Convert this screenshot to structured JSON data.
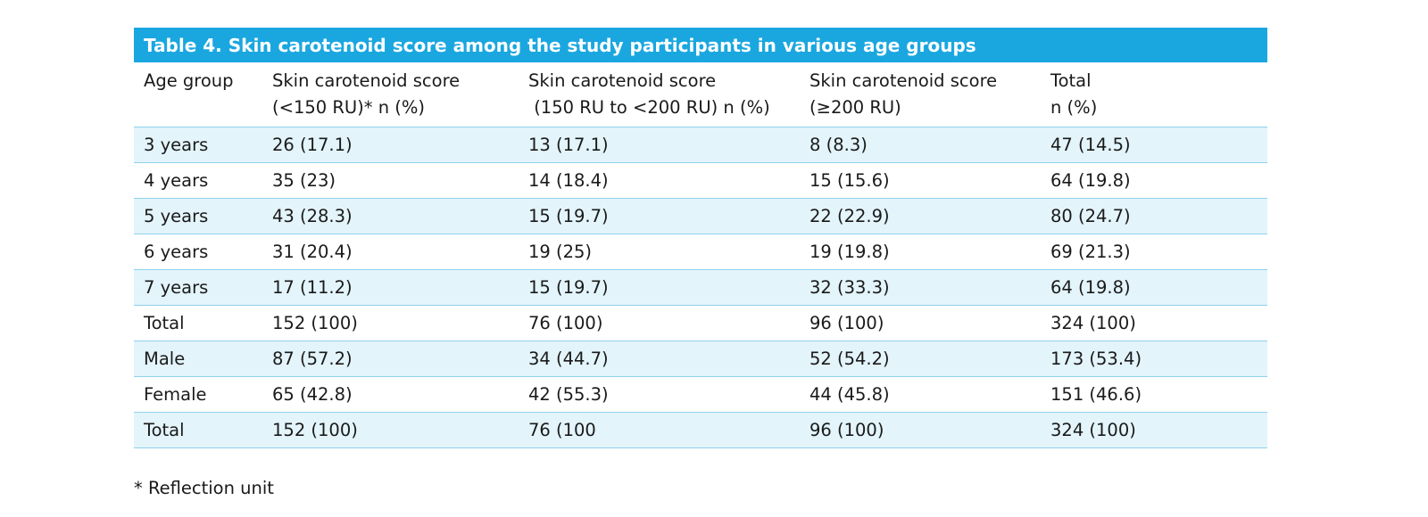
{
  "caption": "Table 4. Skin carotenoid score among the study participants in various age groups",
  "headers": [
    {
      "line1": "Age group",
      "line2": ""
    },
    {
      "line1": "Skin carotenoid score",
      "line2": "(<150 RU)* n (%)"
    },
    {
      "line1": "Skin carotenoid score",
      "line2": " (150 RU to <200 RU) n (%)"
    },
    {
      "line1": "Skin carotenoid score",
      "line2": "(≥200 RU)"
    },
    {
      "line1": "Total",
      "line2": "n (%)"
    }
  ],
  "rows": [
    [
      "3 years",
      "26 (17.1)",
      "13 (17.1)",
      "8 (8.3)",
      "47 (14.5)"
    ],
    [
      "4 years",
      "35 (23)",
      "14 (18.4)",
      "15 (15.6)",
      "64 (19.8)"
    ],
    [
      "5 years",
      "43 (28.3)",
      "15 (19.7)",
      "22 (22.9)",
      "80 (24.7)"
    ],
    [
      "6 years",
      "31 (20.4)",
      "19 (25)",
      "19 (19.8)",
      "69 (21.3)"
    ],
    [
      "7 years",
      "17 (11.2)",
      "15 (19.7)",
      "32 (33.3)",
      "64 (19.8)"
    ],
    [
      "Total",
      "152 (100)",
      "76 (100)",
      "96 (100)",
      "324 (100)"
    ],
    [
      "Male",
      "87 (57.2)",
      "34 (44.7)",
      "52 (54.2)",
      "173 (53.4)"
    ],
    [
      "Female",
      "65 (42.8)",
      "42 (55.3)",
      "44 (45.8)",
      "151 (46.6)"
    ],
    [
      "Total",
      "152 (100)",
      "76 (100",
      "96 (100)",
      "324 (100)"
    ]
  ],
  "shaded_rows": [
    true,
    false,
    true,
    false,
    true,
    false,
    true,
    false,
    true
  ],
  "footnote": "* Reflection unit",
  "colors": {
    "caption_bg": "#1aa7e0",
    "caption_text": "#ffffff",
    "row_shade": "#e3f4fb",
    "row_border": "#8fd1ec"
  }
}
